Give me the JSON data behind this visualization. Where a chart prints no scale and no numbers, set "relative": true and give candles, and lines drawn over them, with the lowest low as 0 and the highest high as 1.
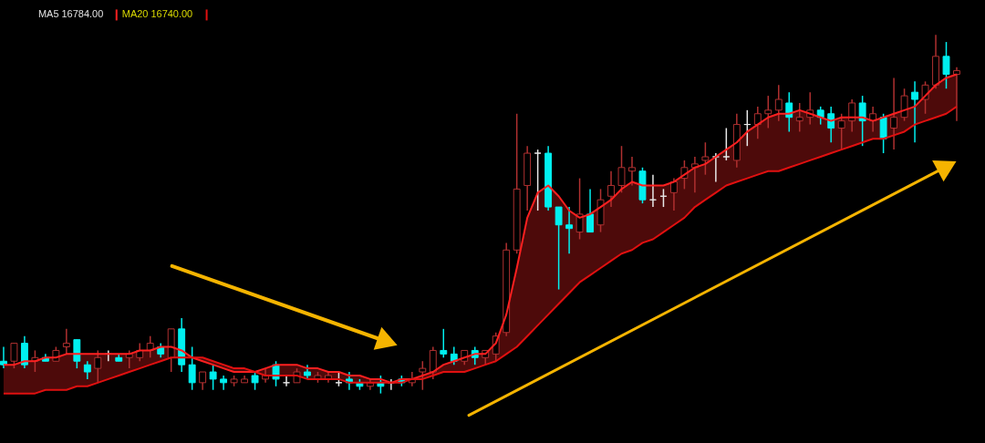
{
  "chart_data": {
    "type": "candlestick",
    "relative": true,
    "legend": "top left",
    "categories": [
      null,
      null,
      null,
      null,
      null,
      null,
      null,
      null,
      null,
      null,
      null,
      null,
      null,
      null,
      null,
      null,
      null,
      null,
      null,
      null,
      null,
      null,
      null,
      null,
      null,
      null,
      null,
      null,
      null,
      null,
      null,
      null,
      null,
      null,
      null,
      null,
      null,
      null,
      null,
      null,
      null,
      null,
      null,
      null,
      null,
      null,
      null,
      null,
      null,
      null,
      null,
      null,
      null,
      null,
      null,
      null,
      null,
      null,
      null,
      null,
      null,
      null,
      null,
      null,
      null,
      null,
      null,
      null,
      null,
      null,
      null,
      null,
      null,
      null,
      null,
      null,
      null,
      null,
      null,
      null,
      null,
      null,
      null,
      null,
      null,
      null,
      null,
      null,
      null,
      null,
      null,
      null
    ],
    "ohlc": [
      [
        0.09,
        0.13,
        0.07,
        0.08
      ],
      [
        0.09,
        0.14,
        0.07,
        0.14
      ],
      [
        0.14,
        0.16,
        0.07,
        0.08
      ],
      [
        0.09,
        0.12,
        0.06,
        0.1
      ],
      [
        0.1,
        0.11,
        0.09,
        0.09
      ],
      [
        0.09,
        0.13,
        0.09,
        0.12
      ],
      [
        0.13,
        0.18,
        0.11,
        0.14
      ],
      [
        0.15,
        0.15,
        0.07,
        0.09
      ],
      [
        0.08,
        0.09,
        0.04,
        0.06
      ],
      [
        0.07,
        0.12,
        0.03,
        0.1
      ],
      [
        0.11,
        0.12,
        0.09,
        0.11
      ],
      [
        0.1,
        0.11,
        0.09,
        0.09
      ],
      [
        0.1,
        0.12,
        0.07,
        0.11
      ],
      [
        0.1,
        0.14,
        0.09,
        0.12
      ],
      [
        0.12,
        0.16,
        0.1,
        0.14
      ],
      [
        0.13,
        0.14,
        0.1,
        0.11
      ],
      [
        0.1,
        0.18,
        0.06,
        0.18
      ],
      [
        0.18,
        0.21,
        0.06,
        0.08
      ],
      [
        0.08,
        0.13,
        0.01,
        0.03
      ],
      [
        0.03,
        0.06,
        0.01,
        0.06
      ],
      [
        0.06,
        0.08,
        0.01,
        0.04
      ],
      [
        0.04,
        0.05,
        0.01,
        0.03
      ],
      [
        0.03,
        0.05,
        0.02,
        0.04
      ],
      [
        0.03,
        0.05,
        0.03,
        0.04
      ],
      [
        0.05,
        0.06,
        0.01,
        0.03
      ],
      [
        0.04,
        0.07,
        0.03,
        0.05
      ],
      [
        0.08,
        0.09,
        0.02,
        0.04
      ],
      [
        0.03,
        0.05,
        0.02,
        0.03
      ],
      [
        0.03,
        0.07,
        0.03,
        0.06
      ],
      [
        0.06,
        0.08,
        0.04,
        0.05
      ],
      [
        0.04,
        0.06,
        0.03,
        0.05
      ],
      [
        0.04,
        0.06,
        0.03,
        0.05
      ],
      [
        0.03,
        0.06,
        0.02,
        0.03
      ],
      [
        0.04,
        0.06,
        0.01,
        0.03
      ],
      [
        0.03,
        0.04,
        0.01,
        0.02
      ],
      [
        0.02,
        0.04,
        0.01,
        0.03
      ],
      [
        0.03,
        0.05,
        0.0,
        0.02
      ],
      [
        0.03,
        0.04,
        0.01,
        0.03
      ],
      [
        0.04,
        0.05,
        0.02,
        0.03
      ],
      [
        0.03,
        0.06,
        0.02,
        0.04
      ],
      [
        0.06,
        0.09,
        0.01,
        0.07
      ],
      [
        0.06,
        0.13,
        0.04,
        0.12
      ],
      [
        0.12,
        0.18,
        0.1,
        0.11
      ],
      [
        0.11,
        0.13,
        0.08,
        0.09
      ],
      [
        0.09,
        0.12,
        0.08,
        0.12
      ],
      [
        0.12,
        0.13,
        0.08,
        0.1
      ],
      [
        0.1,
        0.12,
        0.08,
        0.12
      ],
      [
        0.11,
        0.17,
        0.09,
        0.16
      ],
      [
        0.17,
        0.42,
        0.16,
        0.4
      ],
      [
        0.4,
        0.78,
        0.39,
        0.57
      ],
      [
        0.58,
        0.69,
        0.51,
        0.67
      ],
      [
        0.67,
        0.68,
        0.51,
        0.67
      ],
      [
        0.67,
        0.69,
        0.51,
        0.52
      ],
      [
        0.52,
        0.52,
        0.29,
        0.47
      ],
      [
        0.47,
        0.52,
        0.39,
        0.46
      ],
      [
        0.45,
        0.6,
        0.43,
        0.5
      ],
      [
        0.5,
        0.57,
        0.45,
        0.45
      ],
      [
        0.47,
        0.57,
        0.45,
        0.54
      ],
      [
        0.55,
        0.62,
        0.52,
        0.58
      ],
      [
        0.58,
        0.69,
        0.56,
        0.63
      ],
      [
        0.62,
        0.66,
        0.58,
        0.63
      ],
      [
        0.62,
        0.63,
        0.53,
        0.54
      ],
      [
        0.54,
        0.61,
        0.52,
        0.54
      ],
      [
        0.55,
        0.57,
        0.52,
        0.55
      ],
      [
        0.56,
        0.6,
        0.51,
        0.59
      ],
      [
        0.6,
        0.65,
        0.57,
        0.63
      ],
      [
        0.63,
        0.66,
        0.56,
        0.64
      ],
      [
        0.65,
        0.7,
        0.61,
        0.66
      ],
      [
        0.66,
        0.67,
        0.59,
        0.66
      ],
      [
        0.66,
        0.74,
        0.65,
        0.66
      ],
      [
        0.65,
        0.78,
        0.63,
        0.75
      ],
      [
        0.75,
        0.79,
        0.69,
        0.75
      ],
      [
        0.75,
        0.8,
        0.71,
        0.78
      ],
      [
        0.78,
        0.83,
        0.74,
        0.79
      ],
      [
        0.79,
        0.86,
        0.76,
        0.82
      ],
      [
        0.81,
        0.84,
        0.73,
        0.77
      ],
      [
        0.76,
        0.81,
        0.73,
        0.77
      ],
      [
        0.77,
        0.84,
        0.75,
        0.79
      ],
      [
        0.79,
        0.8,
        0.75,
        0.77
      ],
      [
        0.78,
        0.8,
        0.7,
        0.74
      ],
      [
        0.74,
        0.78,
        0.68,
        0.76
      ],
      [
        0.76,
        0.82,
        0.73,
        0.81
      ],
      [
        0.81,
        0.83,
        0.69,
        0.76
      ],
      [
        0.76,
        0.8,
        0.73,
        0.78
      ],
      [
        0.77,
        0.78,
        0.67,
        0.71
      ],
      [
        0.74,
        0.88,
        0.68,
        0.77
      ],
      [
        0.77,
        0.85,
        0.76,
        0.83
      ],
      [
        0.84,
        0.87,
        0.7,
        0.82
      ],
      [
        0.82,
        0.87,
        0.78,
        0.86
      ],
      [
        0.86,
        1.0,
        0.85,
        0.94
      ],
      [
        0.94,
        0.98,
        0.85,
        0.89
      ],
      [
        0.89,
        0.91,
        0.76,
        0.9
      ]
    ],
    "series": [
      {
        "name": "MA5 16784.00",
        "type": "line",
        "color": "#ff2020",
        "lower": [
          0.0,
          0.0,
          0.0,
          0.0,
          0.01,
          0.01,
          0.01,
          0.02,
          0.02,
          0.03,
          0.04,
          0.05,
          0.06,
          0.07,
          0.08,
          0.09,
          0.1,
          0.1,
          0.1,
          0.1,
          0.09,
          0.08,
          0.07,
          0.07,
          0.06,
          0.05,
          0.05,
          0.05,
          0.05,
          0.04,
          0.04,
          0.04,
          0.04,
          0.03,
          0.03,
          0.03,
          0.03,
          0.03,
          0.03,
          0.04,
          0.04,
          0.05,
          0.06,
          0.06,
          0.06,
          0.07,
          0.08,
          0.09,
          0.11,
          0.13,
          0.16,
          0.19,
          0.22,
          0.25,
          0.28,
          0.31,
          0.33,
          0.35,
          0.37,
          0.39,
          0.4,
          0.42,
          0.43,
          0.45,
          0.47,
          0.49,
          0.52,
          0.54,
          0.56,
          0.58,
          0.59,
          0.6,
          0.61,
          0.62,
          0.62,
          0.63,
          0.64,
          0.65,
          0.66,
          0.67,
          0.68,
          0.69,
          0.7,
          0.71,
          0.71,
          0.72,
          0.73,
          0.75,
          0.76,
          0.77,
          0.78,
          0.8
        ],
        "upper": [
          0.08,
          0.08,
          0.09,
          0.09,
          0.1,
          0.1,
          0.11,
          0.11,
          0.11,
          0.11,
          0.11,
          0.11,
          0.11,
          0.12,
          0.12,
          0.13,
          0.13,
          0.12,
          0.1,
          0.09,
          0.08,
          0.07,
          0.06,
          0.06,
          0.06,
          0.07,
          0.08,
          0.08,
          0.08,
          0.07,
          0.07,
          0.06,
          0.06,
          0.05,
          0.05,
          0.04,
          0.04,
          0.03,
          0.04,
          0.04,
          0.05,
          0.06,
          0.08,
          0.09,
          0.1,
          0.11,
          0.11,
          0.14,
          0.22,
          0.35,
          0.49,
          0.56,
          0.58,
          0.55,
          0.51,
          0.49,
          0.5,
          0.52,
          0.54,
          0.57,
          0.59,
          0.58,
          0.58,
          0.58,
          0.59,
          0.61,
          0.63,
          0.64,
          0.66,
          0.68,
          0.7,
          0.73,
          0.75,
          0.77,
          0.78,
          0.78,
          0.79,
          0.78,
          0.77,
          0.76,
          0.77,
          0.77,
          0.77,
          0.76,
          0.77,
          0.78,
          0.79,
          0.8,
          0.83,
          0.86,
          0.88,
          0.89
        ],
        "values": [
          0.08,
          0.08,
          0.09,
          0.09,
          0.1,
          0.1,
          0.11,
          0.11,
          0.11,
          0.11,
          0.11,
          0.11,
          0.11,
          0.12,
          0.12,
          0.13,
          0.13,
          0.12,
          0.1,
          0.09,
          0.08,
          0.07,
          0.06,
          0.06,
          0.06,
          0.07,
          0.08,
          0.08,
          0.08,
          0.07,
          0.07,
          0.06,
          0.06,
          0.05,
          0.05,
          0.04,
          0.04,
          0.03,
          0.04,
          0.04,
          0.05,
          0.06,
          0.08,
          0.09,
          0.1,
          0.11,
          0.11,
          0.14,
          0.22,
          0.35,
          0.49,
          0.56,
          0.58,
          0.55,
          0.51,
          0.49,
          0.5,
          0.52,
          0.54,
          0.57,
          0.59,
          0.58,
          0.58,
          0.58,
          0.59,
          0.61,
          0.63,
          0.64,
          0.66,
          0.68,
          0.7,
          0.73,
          0.75,
          0.77,
          0.78,
          0.78,
          0.79,
          0.78,
          0.77,
          0.76,
          0.77,
          0.77,
          0.77,
          0.76,
          0.77,
          0.78,
          0.79,
          0.8,
          0.83,
          0.86,
          0.88,
          0.89
        ]
      },
      {
        "name": "MA20 16740.00",
        "type": "line",
        "color": "#e01010",
        "values": [
          0.0,
          0.0,
          0.0,
          0.0,
          0.01,
          0.01,
          0.01,
          0.02,
          0.02,
          0.03,
          0.04,
          0.05,
          0.06,
          0.07,
          0.08,
          0.09,
          0.1,
          0.1,
          0.1,
          0.1,
          0.09,
          0.08,
          0.07,
          0.07,
          0.06,
          0.05,
          0.05,
          0.05,
          0.05,
          0.04,
          0.04,
          0.04,
          0.04,
          0.03,
          0.03,
          0.03,
          0.03,
          0.03,
          0.03,
          0.04,
          0.04,
          0.05,
          0.06,
          0.06,
          0.06,
          0.07,
          0.08,
          0.09,
          0.11,
          0.13,
          0.16,
          0.19,
          0.22,
          0.25,
          0.28,
          0.31,
          0.33,
          0.35,
          0.37,
          0.39,
          0.4,
          0.42,
          0.43,
          0.45,
          0.47,
          0.49,
          0.52,
          0.54,
          0.56,
          0.58,
          0.59,
          0.6,
          0.61,
          0.62,
          0.62,
          0.63,
          0.64,
          0.65,
          0.66,
          0.67,
          0.68,
          0.69,
          0.7,
          0.71,
          0.71,
          0.72,
          0.73,
          0.75,
          0.76,
          0.77,
          0.78,
          0.8
        ]
      }
    ]
  }
}
